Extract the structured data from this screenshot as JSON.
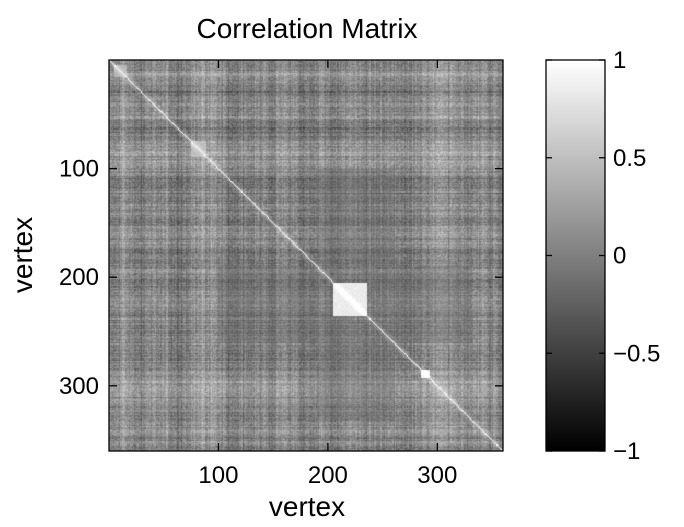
{
  "chart_data": {
    "type": "heatmap",
    "title": "Correlation Matrix",
    "xlabel": "vertex",
    "ylabel": "vertex",
    "colormap": "gray",
    "matrix_size": 360,
    "xlim": [
      0,
      360
    ],
    "ylim": [
      0,
      360
    ],
    "y_axis_reversed": true,
    "x_ticks": [
      {
        "value": 100,
        "label": "100"
      },
      {
        "value": 200,
        "label": "200"
      },
      {
        "value": 300,
        "label": "300"
      }
    ],
    "y_ticks": [
      {
        "value": 100,
        "label": "100"
      },
      {
        "value": 200,
        "label": "200"
      },
      {
        "value": 300,
        "label": "300"
      }
    ],
    "colorbar": {
      "range": [
        -1,
        1
      ],
      "ticks": [
        {
          "value": 1,
          "label": "1"
        },
        {
          "value": 0.5,
          "label": "0.5"
        },
        {
          "value": 0,
          "label": "0"
        },
        {
          "value": -0.5,
          "label": "−0.5"
        },
        {
          "value": -1,
          "label": "−1"
        }
      ]
    },
    "diagonal_value": 1,
    "background_mean": 0.05,
    "bright_blocks": [
      {
        "from": 5,
        "to": 15,
        "value": 0.45
      },
      {
        "from": 75,
        "to": 88,
        "value": 0.5
      },
      {
        "from": 205,
        "to": 235,
        "value": 0.85
      },
      {
        "from": 285,
        "to": 292,
        "value": 0.9
      }
    ],
    "dark_regions": [
      {
        "x_from": 190,
        "x_to": 260,
        "y_from": 100,
        "y_to": 330,
        "value": -0.2
      }
    ]
  }
}
